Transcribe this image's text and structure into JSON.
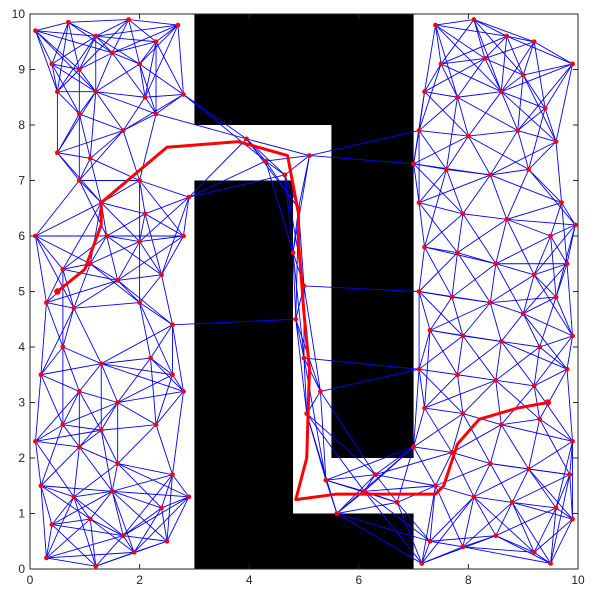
{
  "chart_data": {
    "type": "scatter",
    "title": "",
    "xlabel": "",
    "ylabel": "",
    "xlim": [
      0,
      10
    ],
    "ylim": [
      0,
      10
    ],
    "grid": false,
    "x_ticks": [
      "0",
      "2",
      "4",
      "6",
      "8",
      "10"
    ],
    "y_ticks": [
      "0",
      "1",
      "2",
      "3",
      "4",
      "5",
      "6",
      "7",
      "8",
      "9",
      "10"
    ],
    "colors": {
      "obstacle": "#000000",
      "roadmap_edge": "#0000ff",
      "roadmap_node": "#ff0000",
      "path": "#ff0000"
    },
    "obstacles": [
      [
        [
          3.0,
          10.0
        ],
        [
          7.0,
          10.0
        ],
        [
          7.0,
          2.0
        ],
        [
          5.5,
          2.0
        ],
        [
          5.5,
          8.0
        ],
        [
          3.0,
          8.0
        ]
      ],
      [
        [
          3.0,
          7.0
        ],
        [
          3.0,
          0.0
        ],
        [
          7.0,
          0.0
        ],
        [
          7.0,
          1.0
        ],
        [
          4.8,
          1.0
        ],
        [
          4.8,
          7.0
        ]
      ]
    ],
    "nodes": [
      [
        0.1,
        9.7
      ],
      [
        0.7,
        9.85
      ],
      [
        1.2,
        9.6
      ],
      [
        1.8,
        9.9
      ],
      [
        2.3,
        9.5
      ],
      [
        2.7,
        9.8
      ],
      [
        0.4,
        9.1
      ],
      [
        1.5,
        9.3
      ],
      [
        2.0,
        9.1
      ],
      [
        0.9,
        9.0
      ],
      [
        0.5,
        8.6
      ],
      [
        1.2,
        8.6
      ],
      [
        2.1,
        8.5
      ],
      [
        2.8,
        8.55
      ],
      [
        2.3,
        8.2
      ],
      [
        0.9,
        8.2
      ],
      [
        1.7,
        7.9
      ],
      [
        0.5,
        7.5
      ],
      [
        1.1,
        7.4
      ],
      [
        2.0,
        7.0
      ],
      [
        0.9,
        7.0
      ],
      [
        1.3,
        6.6
      ],
      [
        2.1,
        6.4
      ],
      [
        2.9,
        6.7
      ],
      [
        0.1,
        6.0
      ],
      [
        1.4,
        6.0
      ],
      [
        2.0,
        5.9
      ],
      [
        2.8,
        6.0
      ],
      [
        0.6,
        5.4
      ],
      [
        1.1,
        5.5
      ],
      [
        1.6,
        5.2
      ],
      [
        2.4,
        5.3
      ],
      [
        0.3,
        4.8
      ],
      [
        0.8,
        4.7
      ],
      [
        2.0,
        4.8
      ],
      [
        2.6,
        4.4
      ],
      [
        0.6,
        4.0
      ],
      [
        1.3,
        3.7
      ],
      [
        2.2,
        3.8
      ],
      [
        2.6,
        3.5
      ],
      [
        0.2,
        3.5
      ],
      [
        0.9,
        3.2
      ],
      [
        1.6,
        3.0
      ],
      [
        2.8,
        3.2
      ],
      [
        0.6,
        2.6
      ],
      [
        1.3,
        2.5
      ],
      [
        2.3,
        2.6
      ],
      [
        0.1,
        2.3
      ],
      [
        0.9,
        2.2
      ],
      [
        1.6,
        1.9
      ],
      [
        2.6,
        1.7
      ],
      [
        0.2,
        1.5
      ],
      [
        0.8,
        1.3
      ],
      [
        1.5,
        1.4
      ],
      [
        2.4,
        1.1
      ],
      [
        2.9,
        1.3
      ],
      [
        0.4,
        0.8
      ],
      [
        1.1,
        0.9
      ],
      [
        1.7,
        0.6
      ],
      [
        2.5,
        0.5
      ],
      [
        0.3,
        0.2
      ],
      [
        1.2,
        0.05
      ],
      [
        1.9,
        0.3
      ],
      [
        4.3,
        7.35
      ],
      [
        4.65,
        7.1
      ],
      [
        5.1,
        7.45
      ],
      [
        4.9,
        6.5
      ],
      [
        4.8,
        5.7
      ],
      [
        5.0,
        5.1
      ],
      [
        4.85,
        4.5
      ],
      [
        5.0,
        3.8
      ],
      [
        5.3,
        3.2
      ],
      [
        5.05,
        2.8
      ],
      [
        3.95,
        7.75
      ],
      [
        7.4,
        9.8
      ],
      [
        8.1,
        9.9
      ],
      [
        8.7,
        9.6
      ],
      [
        9.2,
        9.5
      ],
      [
        9.9,
        9.1
      ],
      [
        7.5,
        9.1
      ],
      [
        8.3,
        9.2
      ],
      [
        9.0,
        8.9
      ],
      [
        7.2,
        8.6
      ],
      [
        7.8,
        8.5
      ],
      [
        8.6,
        8.6
      ],
      [
        9.4,
        8.3
      ],
      [
        7.1,
        7.9
      ],
      [
        8.0,
        7.8
      ],
      [
        8.9,
        7.9
      ],
      [
        9.6,
        7.7
      ],
      [
        7.0,
        7.3
      ],
      [
        7.6,
        7.2
      ],
      [
        8.4,
        7.1
      ],
      [
        9.1,
        7.2
      ],
      [
        9.7,
        6.6
      ],
      [
        7.1,
        6.6
      ],
      [
        7.9,
        6.4
      ],
      [
        8.7,
        6.3
      ],
      [
        9.5,
        6.0
      ],
      [
        9.95,
        6.2
      ],
      [
        7.2,
        5.8
      ],
      [
        7.8,
        5.7
      ],
      [
        8.5,
        5.5
      ],
      [
        9.2,
        5.3
      ],
      [
        9.8,
        5.5
      ],
      [
        7.1,
        5.0
      ],
      [
        7.7,
        4.9
      ],
      [
        8.4,
        4.8
      ],
      [
        9.0,
        4.6
      ],
      [
        9.6,
        4.9
      ],
      [
        7.3,
        4.3
      ],
      [
        7.9,
        4.2
      ],
      [
        8.6,
        4.1
      ],
      [
        9.3,
        4.0
      ],
      [
        9.9,
        4.2
      ],
      [
        7.1,
        3.6
      ],
      [
        7.8,
        3.5
      ],
      [
        8.5,
        3.4
      ],
      [
        9.2,
        3.3
      ],
      [
        9.8,
        3.6
      ],
      [
        7.2,
        2.9
      ],
      [
        7.9,
        2.8
      ],
      [
        8.6,
        2.6
      ],
      [
        9.3,
        2.7
      ],
      [
        9.9,
        2.3
      ],
      [
        7.0,
        2.2
      ],
      [
        7.7,
        2.1
      ],
      [
        8.4,
        1.9
      ],
      [
        9.1,
        1.8
      ],
      [
        9.85,
        1.7
      ],
      [
        7.4,
        1.5
      ],
      [
        8.1,
        1.3
      ],
      [
        8.8,
        1.2
      ],
      [
        9.6,
        1.1
      ],
      [
        9.9,
        0.9
      ],
      [
        7.3,
        0.5
      ],
      [
        7.9,
        0.4
      ],
      [
        8.5,
        0.6
      ],
      [
        9.2,
        0.3
      ],
      [
        9.5,
        0.1
      ],
      [
        7.15,
        0.1
      ],
      [
        6.3,
        1.7
      ],
      [
        5.6,
        1.0
      ],
      [
        6.1,
        1.4
      ],
      [
        6.7,
        1.2
      ],
      [
        5.4,
        1.6
      ]
    ],
    "path": [
      [
        0.5,
        5.0
      ],
      [
        1.0,
        5.4
      ],
      [
        1.3,
        6.2
      ],
      [
        1.3,
        6.6
      ],
      [
        2.5,
        7.6
      ],
      [
        3.8,
        7.7
      ],
      [
        4.7,
        7.45
      ],
      [
        4.9,
        6.4
      ],
      [
        4.9,
        5.9
      ],
      [
        5.0,
        4.6
      ],
      [
        5.1,
        3.6
      ],
      [
        5.05,
        2.0
      ],
      [
        4.85,
        1.25
      ],
      [
        5.6,
        1.35
      ],
      [
        6.5,
        1.35
      ],
      [
        7.4,
        1.35
      ],
      [
        7.55,
        1.5
      ],
      [
        7.8,
        2.25
      ],
      [
        8.2,
        2.7
      ],
      [
        8.9,
        2.9
      ],
      [
        9.45,
        3.0
      ]
    ]
  }
}
